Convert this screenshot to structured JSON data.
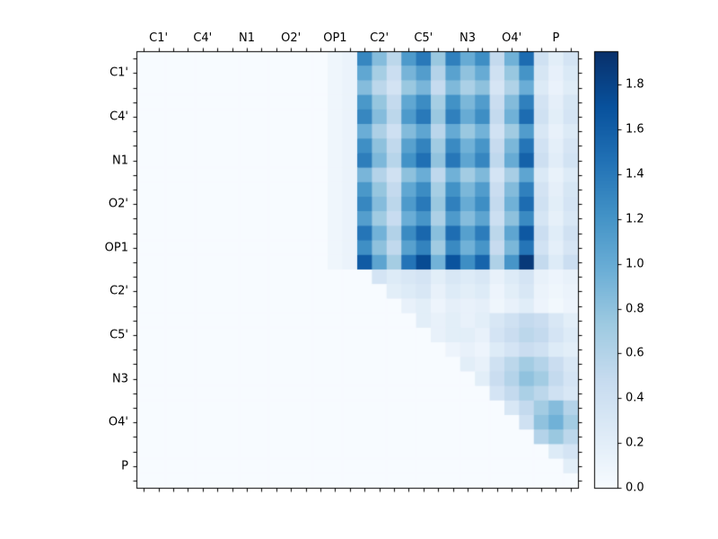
{
  "figure": {
    "background": "#ffffff",
    "frame_color": "#000000",
    "text_color": "#000000"
  },
  "chart_data": {
    "type": "heatmap",
    "title": "",
    "xlabel": "",
    "ylabel": "",
    "x_tick_labels": [
      "C1'",
      "C4'",
      "N1",
      "O2'",
      "OP1",
      "C2'",
      "C5'",
      "N3",
      "O4'",
      "P"
    ],
    "y_tick_labels": [
      "C1'",
      "C4'",
      "N1",
      "O2'",
      "OP1",
      "C2'",
      "C5'",
      "N3",
      "O4'",
      "P"
    ],
    "grid_size": 30,
    "vmin": 0.0,
    "vmax": 1.95,
    "colorbar": {
      "tick_labels": [
        "0.0",
        "0.2",
        "0.4",
        "0.6",
        "0.8",
        "1.0",
        "1.2",
        "1.4",
        "1.6",
        "1.8"
      ],
      "tick_values": [
        0.0,
        0.2,
        0.4,
        0.6,
        0.8,
        1.0,
        1.2,
        1.4,
        1.6,
        1.8
      ]
    },
    "colormap": {
      "name": "Blues",
      "anchors": [
        "#f7fbff",
        "#deebf7",
        "#c6dbef",
        "#9ecae1",
        "#6baed6",
        "#4292c6",
        "#2171b5",
        "#08519c",
        "#08306b"
      ]
    },
    "matrix": [
      [
        0,
        0,
        0,
        0,
        0,
        0,
        0,
        0,
        0,
        0,
        0,
        0,
        0,
        0.08,
        0.12,
        1.3,
        0.85,
        0.55,
        1.15,
        1.4,
        0.75,
        1.35,
        1.0,
        1.25,
        0.5,
        0.95,
        1.5,
        0.4,
        0.2,
        0.35
      ],
      [
        0,
        0,
        0,
        0,
        0,
        0,
        0,
        0,
        0,
        0,
        0,
        0,
        0,
        0.08,
        0.12,
        1.04,
        0.68,
        0.44,
        0.92,
        1.12,
        0.6,
        1.08,
        0.8,
        1.0,
        0.4,
        0.76,
        1.2,
        0.32,
        0.16,
        0.28
      ],
      [
        0,
        0,
        0,
        0,
        0,
        0,
        0,
        0,
        0,
        0,
        0,
        0,
        0,
        0.08,
        0.12,
        0.85,
        0.55,
        0.36,
        0.75,
        0.91,
        0.49,
        0.88,
        0.65,
        0.81,
        0.33,
        0.62,
        0.98,
        0.26,
        0.13,
        0.23
      ],
      [
        0,
        0,
        0,
        0,
        0,
        0,
        0,
        0,
        0,
        0,
        0,
        0,
        0,
        0.08,
        0.12,
        1.17,
        0.77,
        0.5,
        1.04,
        1.26,
        0.68,
        1.22,
        0.9,
        1.13,
        0.45,
        0.86,
        1.35,
        0.36,
        0.18,
        0.32
      ],
      [
        0,
        0,
        0,
        0,
        0,
        0,
        0,
        0,
        0,
        0,
        0,
        0,
        0,
        0.08,
        0.12,
        1.3,
        0.85,
        0.55,
        1.15,
        1.4,
        0.75,
        1.35,
        1.0,
        1.25,
        0.5,
        0.95,
        1.5,
        0.4,
        0.2,
        0.35
      ],
      [
        0,
        0,
        0,
        0,
        0,
        0,
        0,
        0,
        0,
        0,
        0,
        0,
        0,
        0.08,
        0.12,
        0.98,
        0.64,
        0.41,
        0.86,
        1.05,
        0.56,
        1.01,
        0.75,
        0.94,
        0.38,
        0.71,
        1.13,
        0.3,
        0.15,
        0.26
      ],
      [
        0,
        0,
        0,
        0,
        0,
        0,
        0,
        0,
        0,
        0,
        0,
        0,
        0,
        0.08,
        0.12,
        1.24,
        0.81,
        0.52,
        1.09,
        1.33,
        0.71,
        1.28,
        0.95,
        1.19,
        0.48,
        0.9,
        1.43,
        0.38,
        0.19,
        0.33
      ],
      [
        0,
        0,
        0,
        0,
        0,
        0,
        0,
        0,
        0,
        0,
        0,
        0,
        0,
        0.08,
        0.12,
        1.37,
        0.89,
        0.58,
        1.21,
        1.47,
        0.79,
        1.42,
        1.05,
        1.31,
        0.53,
        1.0,
        1.58,
        0.42,
        0.21,
        0.37
      ],
      [
        0,
        0,
        0,
        0,
        0,
        0,
        0,
        0,
        0,
        0,
        0,
        0,
        0,
        0.08,
        0.12,
        0.91,
        0.6,
        0.39,
        0.81,
        0.98,
        0.53,
        0.95,
        0.7,
        0.88,
        0.35,
        0.67,
        1.05,
        0.28,
        0.14,
        0.25
      ],
      [
        0,
        0,
        0,
        0,
        0,
        0,
        0,
        0,
        0,
        0,
        0,
        0,
        0,
        0.08,
        0.12,
        1.17,
        0.77,
        0.5,
        1.04,
        1.26,
        0.68,
        1.22,
        0.9,
        1.13,
        0.45,
        0.86,
        1.35,
        0.36,
        0.18,
        0.32
      ],
      [
        0,
        0,
        0,
        0,
        0,
        0,
        0,
        0,
        0,
        0,
        0,
        0,
        0,
        0.08,
        0.12,
        1.3,
        0.85,
        0.55,
        1.15,
        1.4,
        0.75,
        1.35,
        1.0,
        1.25,
        0.5,
        0.95,
        1.5,
        0.4,
        0.2,
        0.35
      ],
      [
        0,
        0,
        0,
        0,
        0,
        0,
        0,
        0,
        0,
        0,
        0,
        0,
        0,
        0.08,
        0.12,
        1.11,
        0.72,
        0.47,
        0.98,
        1.19,
        0.64,
        1.15,
        0.85,
        1.06,
        0.43,
        0.81,
        1.28,
        0.34,
        0.17,
        0.3
      ],
      [
        0,
        0,
        0,
        0,
        0,
        0,
        0,
        0,
        0,
        0,
        0,
        0,
        0,
        0.08,
        0.12,
        1.43,
        0.94,
        0.61,
        1.27,
        1.54,
        0.83,
        1.49,
        1.1,
        1.38,
        0.55,
        1.05,
        1.65,
        0.44,
        0.22,
        0.39
      ],
      [
        0,
        0,
        0,
        0,
        0,
        0,
        0,
        0,
        0,
        0,
        0,
        0,
        0,
        0.08,
        0.12,
        1.24,
        0.81,
        0.52,
        1.09,
        1.33,
        0.71,
        1.28,
        0.95,
        1.19,
        0.48,
        0.9,
        1.43,
        0.38,
        0.19,
        0.33
      ],
      [
        0,
        0,
        0,
        0,
        0,
        0,
        0,
        0,
        0,
        0,
        0,
        0,
        0,
        0.08,
        0.12,
        1.63,
        1.06,
        0.69,
        1.44,
        1.75,
        0.94,
        1.69,
        1.25,
        1.56,
        0.63,
        1.19,
        1.88,
        0.5,
        0.25,
        0.44
      ],
      [
        0,
        0,
        0,
        0,
        0,
        0,
        0,
        0,
        0,
        0,
        0,
        0,
        0,
        0,
        0,
        0,
        0.35,
        0.25,
        0.3,
        0.35,
        0.2,
        0.3,
        0.25,
        0.3,
        0.15,
        0.25,
        0.35,
        0.15,
        0.1,
        0.15
      ],
      [
        0,
        0,
        0,
        0,
        0,
        0,
        0,
        0,
        0,
        0,
        0,
        0,
        0,
        0,
        0,
        0,
        0,
        0.2,
        0.25,
        0.3,
        0.15,
        0.25,
        0.2,
        0.25,
        0.1,
        0.2,
        0.3,
        0.12,
        0.08,
        0.12
      ],
      [
        0,
        0,
        0,
        0,
        0,
        0,
        0,
        0,
        0,
        0,
        0,
        0,
        0,
        0,
        0,
        0,
        0,
        0,
        0.15,
        0.2,
        0.1,
        0.18,
        0.15,
        0.18,
        0.08,
        0.15,
        0.22,
        0.1,
        0.05,
        0.1
      ],
      [
        0,
        0,
        0,
        0,
        0,
        0,
        0,
        0,
        0,
        0,
        0,
        0,
        0,
        0,
        0,
        0,
        0,
        0,
        0,
        0.2,
        0.15,
        0.2,
        0.15,
        0.2,
        0.3,
        0.4,
        0.5,
        0.45,
        0.3,
        0.2
      ],
      [
        0,
        0,
        0,
        0,
        0,
        0,
        0,
        0,
        0,
        0,
        0,
        0,
        0,
        0,
        0,
        0,
        0,
        0,
        0,
        0,
        0.15,
        0.2,
        0.2,
        0.15,
        0.35,
        0.45,
        0.55,
        0.5,
        0.35,
        0.25
      ],
      [
        0,
        0,
        0,
        0,
        0,
        0,
        0,
        0,
        0,
        0,
        0,
        0,
        0,
        0,
        0,
        0,
        0,
        0,
        0,
        0,
        0,
        0.1,
        0.15,
        0.1,
        0.25,
        0.35,
        0.45,
        0.4,
        0.25,
        0.2
      ],
      [
        0,
        0,
        0,
        0,
        0,
        0,
        0,
        0,
        0,
        0,
        0,
        0,
        0,
        0,
        0,
        0,
        0,
        0,
        0,
        0,
        0,
        0,
        0.2,
        0.15,
        0.4,
        0.55,
        0.7,
        0.6,
        0.45,
        0.3
      ],
      [
        0,
        0,
        0,
        0,
        0,
        0,
        0,
        0,
        0,
        0,
        0,
        0,
        0,
        0,
        0,
        0,
        0,
        0,
        0,
        0,
        0,
        0,
        0,
        0.2,
        0.45,
        0.6,
        0.8,
        0.7,
        0.5,
        0.35
      ],
      [
        0,
        0,
        0,
        0,
        0,
        0,
        0,
        0,
        0,
        0,
        0,
        0,
        0,
        0,
        0,
        0,
        0,
        0,
        0,
        0,
        0,
        0,
        0,
        0,
        0.35,
        0.5,
        0.65,
        0.55,
        0.4,
        0.3
      ],
      [
        0,
        0,
        0,
        0,
        0,
        0,
        0,
        0,
        0,
        0,
        0,
        0,
        0,
        0,
        0,
        0,
        0,
        0,
        0,
        0,
        0,
        0,
        0,
        0,
        0,
        0.3,
        0.5,
        0.7,
        0.85,
        0.6
      ],
      [
        0,
        0,
        0,
        0,
        0,
        0,
        0,
        0,
        0,
        0,
        0,
        0,
        0,
        0,
        0,
        0,
        0,
        0,
        0,
        0,
        0,
        0,
        0,
        0,
        0,
        0,
        0.4,
        0.8,
        0.95,
        0.7
      ],
      [
        0,
        0,
        0,
        0,
        0,
        0,
        0,
        0,
        0,
        0,
        0,
        0,
        0,
        0,
        0,
        0,
        0,
        0,
        0,
        0,
        0,
        0,
        0,
        0,
        0,
        0,
        0,
        0.6,
        0.75,
        0.55
      ],
      [
        0,
        0,
        0,
        0,
        0,
        0,
        0,
        0,
        0,
        0,
        0,
        0,
        0,
        0,
        0,
        0,
        0,
        0,
        0,
        0,
        0,
        0,
        0,
        0,
        0,
        0,
        0,
        0,
        0.25,
        0.35
      ],
      [
        0,
        0,
        0,
        0,
        0,
        0,
        0,
        0,
        0,
        0,
        0,
        0,
        0,
        0,
        0,
        0,
        0,
        0,
        0,
        0,
        0,
        0,
        0,
        0,
        0,
        0,
        0,
        0,
        0,
        0.2
      ],
      [
        0,
        0,
        0,
        0,
        0,
        0,
        0,
        0,
        0,
        0,
        0,
        0,
        0,
        0,
        0,
        0,
        0,
        0,
        0,
        0,
        0,
        0,
        0,
        0,
        0,
        0,
        0,
        0,
        0,
        0
      ]
    ]
  }
}
